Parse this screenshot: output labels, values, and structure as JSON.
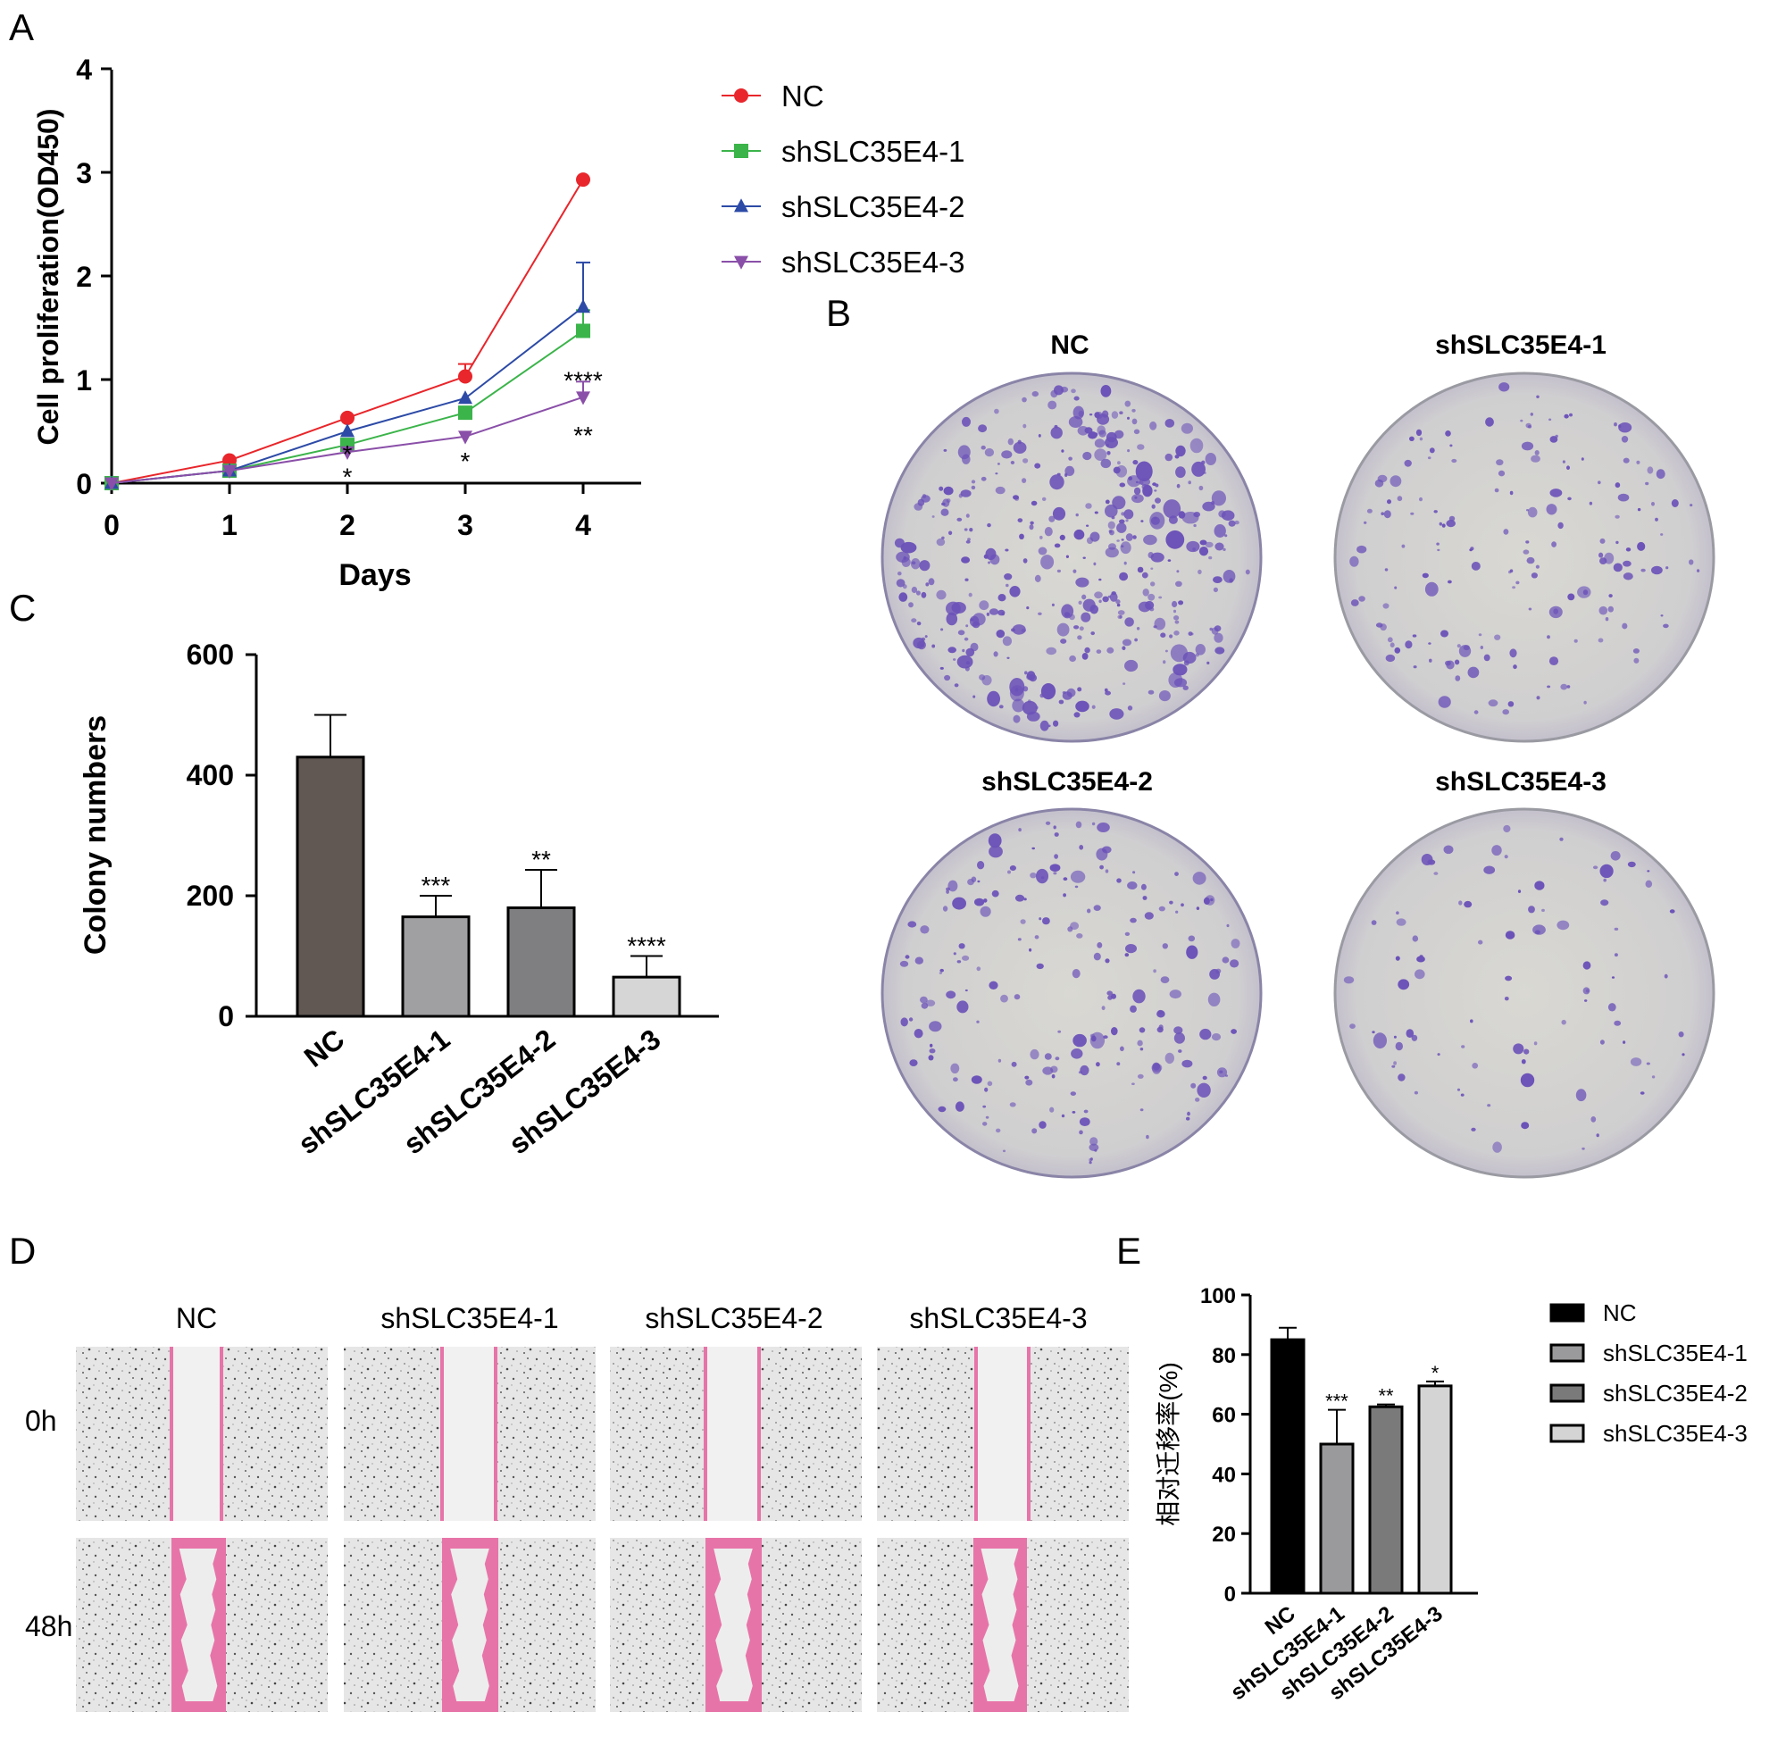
{
  "panel_labels": {
    "a": "A",
    "b": "B",
    "c": "C",
    "d": "D",
    "e": "E"
  },
  "colors": {
    "nc_line": "#e8262b",
    "sh1_line": "#3bb44a",
    "sh2_line": "#2c4aa6",
    "sh3_line": "#8a4fa8",
    "bar_nc_c": "#615853",
    "bar_sh1_c": "#a0a0a3",
    "bar_sh2_c": "#7f7f81",
    "bar_sh3_c": "#d6d6d6",
    "bar_nc_e": "#000000",
    "bar_sh1_e": "#9a9a9c",
    "bar_sh2_e": "#7a7a7a",
    "bar_sh3_e": "#d4d4d4",
    "crystal_violet": "#6b52b8",
    "wound_pink": "#e774a8"
  },
  "chart_data": [
    {
      "id": "A",
      "type": "line",
      "xlabel": "Days",
      "ylabel": "Cell proliferation(OD450)",
      "x": [
        0,
        1,
        2,
        3,
        4
      ],
      "xlim": [
        0,
        4
      ],
      "ylim": [
        0,
        4
      ],
      "yticks": [
        0,
        1,
        2,
        3,
        4
      ],
      "legend_position": "top-right",
      "series": [
        {
          "name": "NC",
          "marker": "circle",
          "color": "#e8262b",
          "values": [
            0.0,
            0.22,
            0.63,
            1.03,
            2.93
          ],
          "errors": [
            0,
            0,
            0,
            0.12,
            0
          ]
        },
        {
          "name": "shSLC35E4-1",
          "marker": "square",
          "color": "#3bb44a",
          "values": [
            0.0,
            0.12,
            0.37,
            0.68,
            1.47
          ],
          "errors": [
            0,
            0,
            0,
            0,
            0.2
          ]
        },
        {
          "name": "shSLC35E4-2",
          "marker": "triangle-up",
          "color": "#2c4aa6",
          "values": [
            0.0,
            0.12,
            0.5,
            0.82,
            1.7
          ],
          "errors": [
            0,
            0,
            0,
            0,
            0.43
          ]
        },
        {
          "name": "shSLC35E4-3",
          "marker": "triangle-down",
          "color": "#8a4fa8",
          "values": [
            0.0,
            0.12,
            0.3,
            0.45,
            0.83
          ],
          "errors": [
            0,
            0,
            0,
            0,
            0.15
          ]
        }
      ],
      "annotations": [
        {
          "x": 2,
          "y": 0.32,
          "text": "*"
        },
        {
          "x": 2,
          "y": 0.1,
          "text": "*"
        },
        {
          "x": 3,
          "y": 0.25,
          "text": "*"
        },
        {
          "x": 4,
          "y": 1.03,
          "text": "****"
        },
        {
          "x": 4,
          "y": 0.5,
          "text": "**"
        }
      ]
    },
    {
      "id": "C",
      "type": "bar",
      "ylabel": "Colony numbers",
      "categories": [
        "NC",
        "shSLC35E4-1",
        "shSLC35E4-2",
        "shSLC35E4-3"
      ],
      "values": [
        430,
        165,
        180,
        65
      ],
      "errors": [
        70,
        35,
        63,
        35
      ],
      "significance": [
        "",
        "***",
        "**",
        "****"
      ],
      "ylim": [
        0,
        600
      ],
      "yticks": [
        0,
        200,
        400,
        600
      ]
    },
    {
      "id": "E",
      "type": "bar",
      "ylabel": "相对迁移率(%)",
      "categories": [
        "NC",
        "shSLC35E4-1",
        "shSLC35E4-2",
        "shSLC35E4-3"
      ],
      "values": [
        85,
        50,
        62.5,
        69.5
      ],
      "errors": [
        4,
        11.5,
        0.8,
        1.5
      ],
      "significance": [
        "",
        "***",
        "**",
        "*"
      ],
      "ylim": [
        0,
        100
      ],
      "yticks": [
        0,
        20,
        40,
        60,
        80,
        100
      ],
      "legend_position": "right",
      "legend": [
        "NC",
        "shSLC35E4-1",
        "shSLC35E4-2",
        "shSLC35E4-3"
      ]
    }
  ],
  "panel_b": {
    "titles": [
      "NC",
      "shSLC35E4-1",
      "shSLC35E4-2",
      "shSLC35E4-3"
    ]
  },
  "panel_d": {
    "columns": [
      "NC",
      "shSLC35E4-1",
      "shSLC35E4-2",
      "shSLC35E4-3"
    ],
    "rows": [
      "0h",
      "48h"
    ]
  }
}
